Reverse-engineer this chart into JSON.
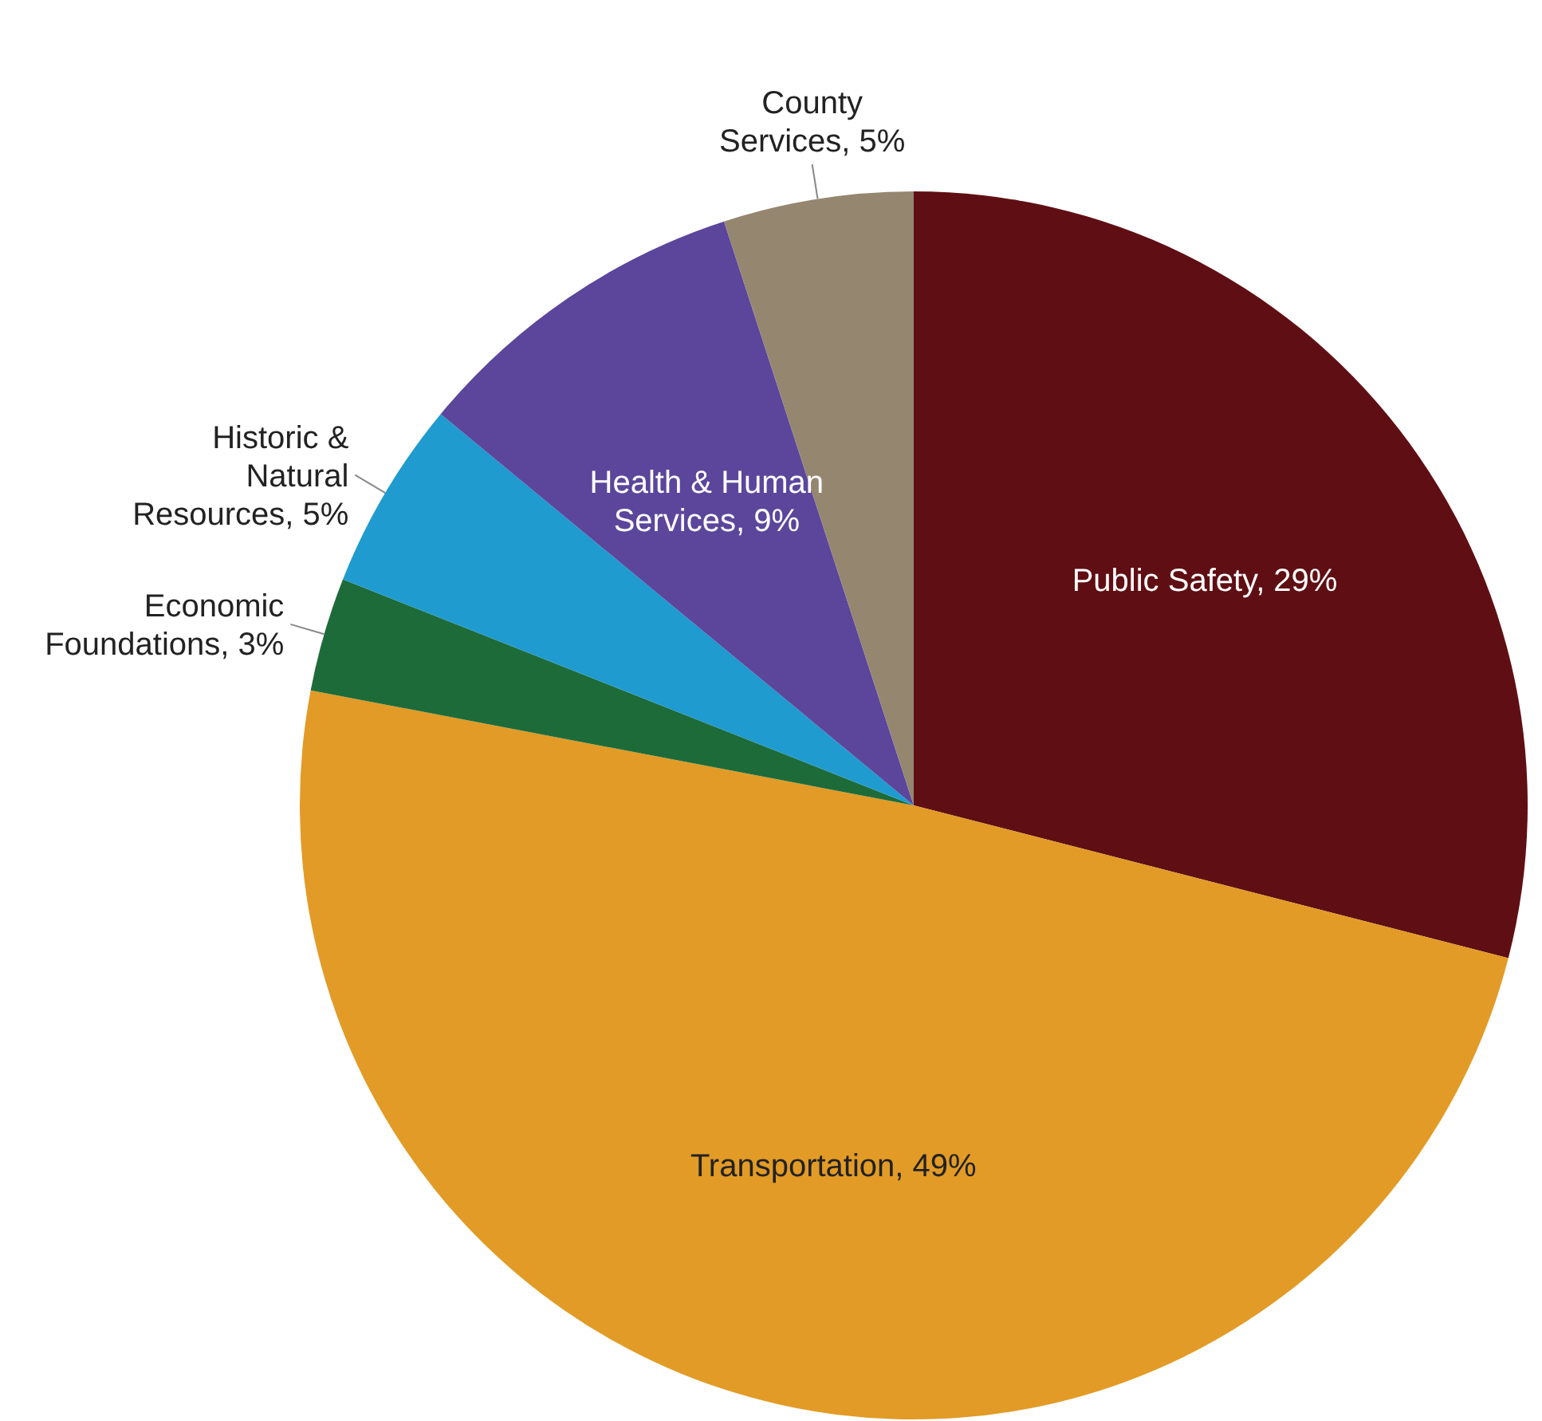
{
  "chart_data": {
    "type": "pie",
    "categories": [
      "Public Safety",
      "Transportation",
      "Economic Foundations",
      "Historic & Natural Resources",
      "Health & Human Services",
      "County Services"
    ],
    "values": [
      29,
      49,
      3,
      5,
      9,
      5
    ],
    "value_labels": [
      "29%",
      "49%",
      "3%",
      "5%",
      "9%",
      "5%"
    ],
    "colors": [
      "#5f0f13",
      "#e29b26",
      "#1e6b3a",
      "#1f9bcf",
      "#5b469c",
      "#958670"
    ]
  }
}
